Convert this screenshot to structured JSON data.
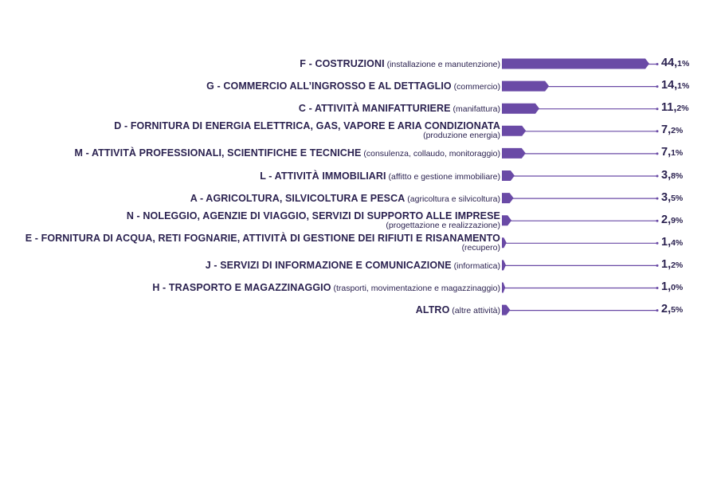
{
  "chart_data": {
    "type": "bar",
    "orientation": "horizontal",
    "bar_color": "#6a4aa6",
    "line_color": "#6a4aa6",
    "text_color": "#2b2250",
    "xlim": [
      0,
      44.1
    ],
    "categories": [
      {
        "main": "F - COSTRUZIONI",
        "sub": "(installazione e manutenzione)",
        "sub_newline": false,
        "value": 44.1,
        "int": "44,",
        "dec": "1%"
      },
      {
        "main": "G - COMMERCIO ALL’INGROSSO E AL DETTAGLIO",
        "sub": "(commercio)",
        "sub_newline": false,
        "value": 14.1,
        "int": "14,",
        "dec": "1%"
      },
      {
        "main": "C - ATTIVITÀ MANIFATTURIERE",
        "sub": "(manifattura)",
        "sub_newline": false,
        "value": 11.2,
        "int": "11,",
        "dec": "2%"
      },
      {
        "main": "D - FORNITURA DI ENERGIA ELETTRICA, GAS, VAPORE E ARIA CONDIZIONATA",
        "sub": "(produzione energia)",
        "sub_newline": true,
        "value": 7.2,
        "int": "7,",
        "dec": "2%"
      },
      {
        "main": "M - ATTIVITÀ PROFESSIONALI, SCIENTIFICHE E TECNICHE",
        "sub": "(consulenza, collaudo, monitoraggio)",
        "sub_newline": false,
        "value": 7.1,
        "int": "7,",
        "dec": "1%"
      },
      {
        "main": "L - ATTIVITÀ IMMOBILIARI",
        "sub": "(affitto e gestione immobiliare)",
        "sub_newline": false,
        "value": 3.8,
        "int": "3,",
        "dec": "8%"
      },
      {
        "main": "A - AGRICOLTURA, SILVICOLTURA E PESCA",
        "sub": "(agricoltura e silvicoltura)",
        "sub_newline": false,
        "value": 3.5,
        "int": "3,",
        "dec": "5%"
      },
      {
        "main": "N - NOLEGGIO, AGENZIE DI VIAGGIO, SERVIZI DI SUPPORTO ALLE IMPRESE",
        "sub": "(progettazione e realizzazione)",
        "sub_newline": true,
        "value": 2.9,
        "int": "2,",
        "dec": "9%"
      },
      {
        "main": "E - FORNITURA DI ACQUA, RETI FOGNARIE, ATTIVITÀ DI GESTIONE DEI RIFIUTI  E RISANAMENTO",
        "sub": "(recupero)",
        "sub_newline": true,
        "value": 1.4,
        "int": "1,",
        "dec": "4%"
      },
      {
        "main": "J - SERVIZI DI INFORMAZIONE E COMUNICAZIONE",
        "sub": "(informatica)",
        "sub_newline": false,
        "value": 1.2,
        "int": "1,",
        "dec": "2%"
      },
      {
        "main": "H - TRASPORTO E MAGAZZINAGGIO",
        "sub": "(trasporti, movimentazione e magazzinaggio)",
        "sub_newline": false,
        "value": 1.0,
        "int": "1,",
        "dec": "0%"
      },
      {
        "main": "ALTRO",
        "sub": "(altre attività)",
        "sub_newline": false,
        "value": 2.5,
        "int": "2,",
        "dec": "5%"
      }
    ]
  }
}
